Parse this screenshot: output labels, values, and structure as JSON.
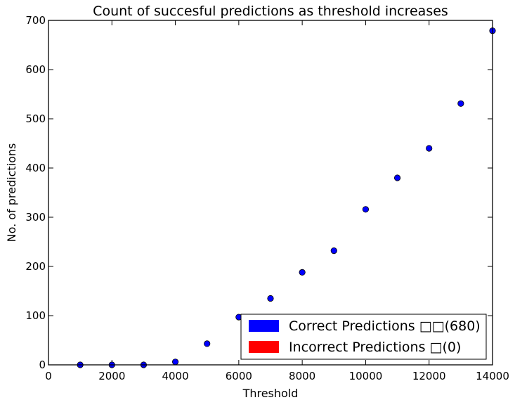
{
  "chart_data": {
    "type": "scatter",
    "title": "Count of succesful predictions as threshold increases",
    "xlabel": "Threshold",
    "ylabel": "No. of predictions",
    "xlim": [
      0,
      14000
    ],
    "ylim": [
      0,
      700
    ],
    "xticks": [
      0,
      2000,
      4000,
      6000,
      8000,
      10000,
      12000,
      14000
    ],
    "xtick_labels": [
      "0",
      "2000",
      "4000",
      "6000",
      "8000",
      "10000",
      "12000",
      "14000"
    ],
    "yticks": [
      0,
      100,
      200,
      300,
      400,
      500,
      600,
      700
    ],
    "ytick_labels": [
      "0",
      "100",
      "200",
      "300",
      "400",
      "500",
      "600",
      "700"
    ],
    "grid": false,
    "legend_position": "lower-right",
    "series": [
      {
        "color": "#0000ff",
        "x": [
          1000,
          2000,
          3000,
          4000,
          5000,
          6000,
          7000,
          8000,
          9000,
          10000,
          11000,
          12000,
          13000,
          14000
        ],
        "y": [
          0,
          0,
          0,
          6,
          43,
          97,
          135,
          188,
          232,
          316,
          380,
          440,
          531,
          679
        ]
      }
    ],
    "legend": [
      {
        "label": "Correct Predictions □□(680)",
        "color": "#0000ff"
      },
      {
        "label": "Incorrect Predictions □(0)",
        "color": "#ff0000"
      }
    ]
  }
}
